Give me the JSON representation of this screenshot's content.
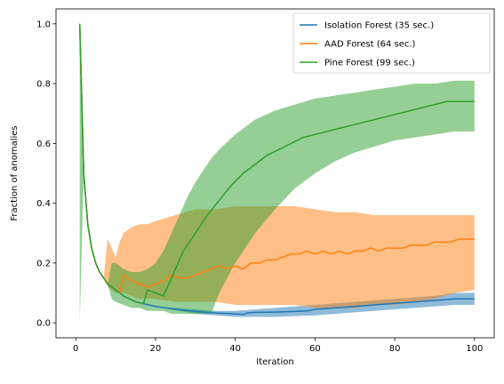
{
  "chart_data": {
    "type": "line",
    "title": "",
    "xlabel": "Iteration",
    "ylabel": "Fraction of anomalies",
    "xlim": [
      -4.95,
      104.95
    ],
    "ylim": [
      -0.05,
      1.05
    ],
    "xticks": [
      0,
      20,
      40,
      60,
      80,
      100
    ],
    "yticks": [
      0.0,
      0.2,
      0.4,
      0.6,
      0.8,
      1.0
    ],
    "xtick_labels": [
      "0",
      "20",
      "40",
      "60",
      "80",
      "100"
    ],
    "ytick_labels": [
      "0.0",
      "0.2",
      "0.4",
      "0.6",
      "0.8",
      "1.0"
    ],
    "grid": false,
    "legend_position": "top-right",
    "series": [
      {
        "name": "Isolation Forest (35 sec.)",
        "color": "#1f77b4",
        "mean": [
          [
            1,
            1.0
          ],
          [
            2,
            0.5
          ],
          [
            3,
            0.33
          ],
          [
            4,
            0.25
          ],
          [
            5,
            0.2
          ],
          [
            6,
            0.17
          ],
          [
            8,
            0.13
          ],
          [
            10,
            0.11
          ],
          [
            12,
            0.09
          ],
          [
            15,
            0.07
          ],
          [
            20,
            0.055
          ],
          [
            25,
            0.045
          ],
          [
            30,
            0.038
          ],
          [
            35,
            0.033
          ],
          [
            40,
            0.03
          ],
          [
            42,
            0.028
          ],
          [
            43,
            0.033
          ],
          [
            45,
            0.035
          ],
          [
            50,
            0.036
          ],
          [
            55,
            0.038
          ],
          [
            58,
            0.04
          ],
          [
            60,
            0.045
          ],
          [
            65,
            0.05
          ],
          [
            70,
            0.055
          ],
          [
            75,
            0.06
          ],
          [
            80,
            0.065
          ],
          [
            85,
            0.07
          ],
          [
            90,
            0.075
          ],
          [
            95,
            0.08
          ],
          [
            100,
            0.08
          ]
        ],
        "band": [
          [
            1,
            1.0,
            1.0
          ],
          [
            2,
            0.5,
            0.5
          ],
          [
            3,
            0.33,
            0.33
          ],
          [
            5,
            0.2,
            0.2
          ],
          [
            8,
            0.13,
            0.13
          ],
          [
            12,
            0.09,
            0.09
          ],
          [
            20,
            0.055,
            0.055
          ],
          [
            30,
            0.045,
            0.03
          ],
          [
            35,
            0.04,
            0.025
          ],
          [
            40,
            0.04,
            0.02
          ],
          [
            50,
            0.05,
            0.02
          ],
          [
            60,
            0.06,
            0.025
          ],
          [
            70,
            0.07,
            0.035
          ],
          [
            80,
            0.08,
            0.045
          ],
          [
            90,
            0.09,
            0.055
          ],
          [
            95,
            0.1,
            0.06
          ],
          [
            100,
            0.1,
            0.06
          ]
        ]
      },
      {
        "name": "AAD Forest (64 sec.)",
        "color": "#ff7f0e",
        "mean": [
          [
            1,
            1.0
          ],
          [
            2,
            0.5
          ],
          [
            3,
            0.33
          ],
          [
            4,
            0.25
          ],
          [
            5,
            0.2
          ],
          [
            6,
            0.17
          ],
          [
            8,
            0.13
          ],
          [
            10,
            0.11
          ],
          [
            11,
            0.1
          ],
          [
            12,
            0.16
          ],
          [
            14,
            0.14
          ],
          [
            16,
            0.13
          ],
          [
            18,
            0.12
          ],
          [
            20,
            0.13
          ],
          [
            22,
            0.14
          ],
          [
            24,
            0.16
          ],
          [
            26,
            0.15
          ],
          [
            28,
            0.15
          ],
          [
            30,
            0.16
          ],
          [
            32,
            0.17
          ],
          [
            34,
            0.18
          ],
          [
            36,
            0.19
          ],
          [
            38,
            0.18
          ],
          [
            40,
            0.19
          ],
          [
            42,
            0.18
          ],
          [
            44,
            0.2
          ],
          [
            46,
            0.2
          ],
          [
            48,
            0.21
          ],
          [
            50,
            0.21
          ],
          [
            52,
            0.22
          ],
          [
            54,
            0.23
          ],
          [
            56,
            0.23
          ],
          [
            58,
            0.24
          ],
          [
            60,
            0.23
          ],
          [
            62,
            0.24
          ],
          [
            64,
            0.23
          ],
          [
            66,
            0.24
          ],
          [
            68,
            0.23
          ],
          [
            70,
            0.24
          ],
          [
            72,
            0.24
          ],
          [
            74,
            0.25
          ],
          [
            76,
            0.24
          ],
          [
            78,
            0.25
          ],
          [
            80,
            0.25
          ],
          [
            82,
            0.25
          ],
          [
            84,
            0.26
          ],
          [
            86,
            0.26
          ],
          [
            88,
            0.26
          ],
          [
            90,
            0.27
          ],
          [
            92,
            0.27
          ],
          [
            94,
            0.27
          ],
          [
            96,
            0.28
          ],
          [
            98,
            0.28
          ],
          [
            100,
            0.28
          ]
        ],
        "band": [
          [
            1,
            1.0,
            1.0
          ],
          [
            2,
            0.5,
            0.5
          ],
          [
            3,
            0.33,
            0.33
          ],
          [
            5,
            0.2,
            0.2
          ],
          [
            7,
            0.15,
            0.15
          ],
          [
            8,
            0.28,
            0.12
          ],
          [
            10,
            0.22,
            0.1
          ],
          [
            11,
            0.27,
            0.1
          ],
          [
            12,
            0.3,
            0.1
          ],
          [
            14,
            0.32,
            0.09
          ],
          [
            16,
            0.33,
            0.08
          ],
          [
            18,
            0.33,
            0.08
          ],
          [
            20,
            0.34,
            0.08
          ],
          [
            25,
            0.36,
            0.07
          ],
          [
            30,
            0.38,
            0.07
          ],
          [
            35,
            0.38,
            0.07
          ],
          [
            40,
            0.39,
            0.06
          ],
          [
            45,
            0.39,
            0.06
          ],
          [
            50,
            0.39,
            0.06
          ],
          [
            55,
            0.39,
            0.06
          ],
          [
            60,
            0.38,
            0.05
          ],
          [
            65,
            0.37,
            0.05
          ],
          [
            70,
            0.37,
            0.05
          ],
          [
            75,
            0.36,
            0.06
          ],
          [
            80,
            0.36,
            0.06
          ],
          [
            85,
            0.36,
            0.07
          ],
          [
            90,
            0.36,
            0.08
          ],
          [
            95,
            0.36,
            0.1
          ],
          [
            100,
            0.36,
            0.11
          ]
        ]
      },
      {
        "name": "Pine Forest (99 sec.)",
        "color": "#2ca02c",
        "mean": [
          [
            1,
            1.0
          ],
          [
            2,
            0.5
          ],
          [
            3,
            0.33
          ],
          [
            4,
            0.25
          ],
          [
            5,
            0.2
          ],
          [
            6,
            0.17
          ],
          [
            8,
            0.13
          ],
          [
            10,
            0.11
          ],
          [
            12,
            0.09
          ],
          [
            15,
            0.07
          ],
          [
            17,
            0.065
          ],
          [
            18,
            0.11
          ],
          [
            20,
            0.1
          ],
          [
            22,
            0.09
          ],
          [
            23,
            0.12
          ],
          [
            25,
            0.18
          ],
          [
            27,
            0.24
          ],
          [
            30,
            0.3
          ],
          [
            33,
            0.36
          ],
          [
            36,
            0.41
          ],
          [
            39,
            0.46
          ],
          [
            42,
            0.5
          ],
          [
            45,
            0.53
          ],
          [
            48,
            0.56
          ],
          [
            51,
            0.58
          ],
          [
            54,
            0.6
          ],
          [
            57,
            0.62
          ],
          [
            60,
            0.63
          ],
          [
            63,
            0.64
          ],
          [
            66,
            0.65
          ],
          [
            69,
            0.66
          ],
          [
            72,
            0.67
          ],
          [
            75,
            0.68
          ],
          [
            78,
            0.69
          ],
          [
            81,
            0.7
          ],
          [
            84,
            0.71
          ],
          [
            87,
            0.72
          ],
          [
            90,
            0.73
          ],
          [
            93,
            0.74
          ],
          [
            96,
            0.74
          ],
          [
            98,
            0.74
          ],
          [
            100,
            0.74
          ]
        ],
        "band": [
          [
            1,
            1.0,
            0.0
          ],
          [
            2,
            0.5,
            0.5
          ],
          [
            3,
            0.33,
            0.33
          ],
          [
            5,
            0.2,
            0.2
          ],
          [
            8,
            0.13,
            0.13
          ],
          [
            9,
            0.2,
            0.08
          ],
          [
            10,
            0.2,
            0.07
          ],
          [
            12,
            0.18,
            0.06
          ],
          [
            14,
            0.17,
            0.05
          ],
          [
            16,
            0.17,
            0.05
          ],
          [
            18,
            0.18,
            0.04
          ],
          [
            20,
            0.2,
            0.04
          ],
          [
            22,
            0.24,
            0.04
          ],
          [
            24,
            0.3,
            0.03
          ],
          [
            26,
            0.36,
            0.03
          ],
          [
            28,
            0.42,
            0.03
          ],
          [
            30,
            0.47,
            0.03
          ],
          [
            32,
            0.51,
            0.03
          ],
          [
            34,
            0.55,
            0.03
          ],
          [
            36,
            0.58,
            0.1
          ],
          [
            40,
            0.63,
            0.2
          ],
          [
            45,
            0.68,
            0.3
          ],
          [
            50,
            0.71,
            0.38
          ],
          [
            55,
            0.73,
            0.45
          ],
          [
            60,
            0.75,
            0.5
          ],
          [
            65,
            0.76,
            0.54
          ],
          [
            70,
            0.77,
            0.57
          ],
          [
            75,
            0.78,
            0.59
          ],
          [
            80,
            0.79,
            0.61
          ],
          [
            85,
            0.8,
            0.62
          ],
          [
            90,
            0.8,
            0.63
          ],
          [
            95,
            0.81,
            0.64
          ],
          [
            100,
            0.81,
            0.64
          ]
        ]
      }
    ]
  }
}
